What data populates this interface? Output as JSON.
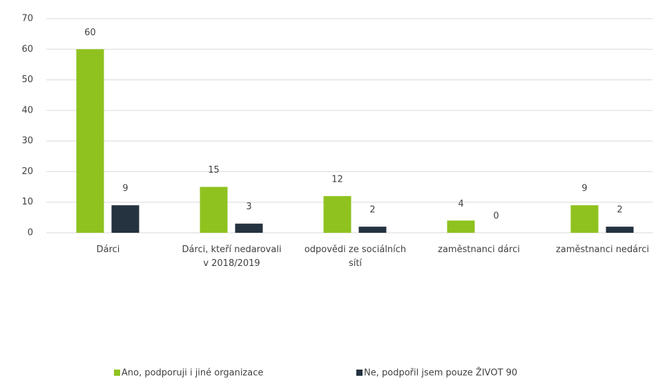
{
  "chart_data": {
    "type": "bar",
    "categories": [
      "Dárci",
      "Dárci, kteří nedarovali v 2018/2019",
      "odpovědi ze sociálních sítí",
      "zaměstnanci dárci",
      "zaměstnanci nedárci"
    ],
    "series": [
      {
        "name": "Ano, podporuji i jiné organizace",
        "color": "#8fc21f",
        "values": [
          60,
          15,
          12,
          4,
          9
        ]
      },
      {
        "name": "Ne, podpořil jsem pouze ŽIVOT 90",
        "color": "#253240",
        "values": [
          9,
          3,
          2,
          0,
          2
        ]
      }
    ],
    "ylim": [
      0,
      70
    ],
    "yticks": [
      0,
      10,
      20,
      30,
      40,
      50,
      60,
      70
    ],
    "grid": true,
    "legend": "bottom"
  }
}
